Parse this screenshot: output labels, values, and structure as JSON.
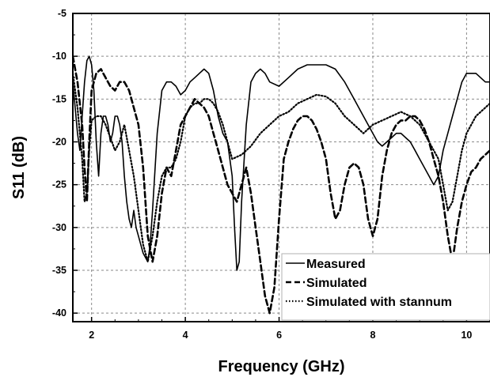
{
  "chart_data": {
    "type": "line",
    "xlabel": "Frequency (GHz)",
    "ylabel": "S11 (dB)",
    "xlim": [
      1.6,
      10.5
    ],
    "ylim": [
      -41,
      -5
    ],
    "x_ticks": [
      2,
      4,
      6,
      8,
      10
    ],
    "y_ticks": [
      -5,
      -10,
      -15,
      -20,
      -25,
      -30,
      -35,
      -40
    ],
    "grid": true,
    "legend_position": "bottom-right",
    "series": [
      {
        "name": "Measured",
        "style": "solid",
        "color": "#000000",
        "x": [
          1.6,
          1.7,
          1.75,
          1.8,
          1.85,
          1.9,
          1.95,
          2.0,
          2.05,
          2.1,
          2.15,
          2.2,
          2.25,
          2.3,
          2.35,
          2.4,
          2.45,
          2.5,
          2.55,
          2.6,
          2.65,
          2.7,
          2.75,
          2.8,
          2.85,
          2.9,
          2.95,
          3.0,
          3.1,
          3.2,
          3.25,
          3.3,
          3.4,
          3.5,
          3.6,
          3.7,
          3.8,
          3.9,
          4.0,
          4.1,
          4.2,
          4.3,
          4.4,
          4.5,
          4.6,
          4.7,
          4.8,
          4.9,
          5.0,
          5.05,
          5.1,
          5.15,
          5.2,
          5.3,
          5.4,
          5.5,
          5.6,
          5.7,
          5.8,
          6.0,
          6.2,
          6.4,
          6.6,
          6.8,
          7.0,
          7.2,
          7.4,
          7.6,
          7.8,
          8.0,
          8.1,
          8.2,
          8.3,
          8.4,
          8.5,
          8.6,
          8.7,
          8.8,
          8.9,
          9.0,
          9.1,
          9.2,
          9.3,
          9.4,
          9.5,
          9.6,
          9.7,
          9.8,
          9.9,
          10.0,
          10.1,
          10.2,
          10.3,
          10.4,
          10.5
        ],
        "y": [
          -13,
          -19,
          -21,
          -17,
          -13,
          -10.5,
          -10,
          -11,
          -14,
          -20,
          -24,
          -19,
          -17,
          -17,
          -18,
          -20,
          -19,
          -17,
          -17,
          -18,
          -20,
          -24,
          -27,
          -29,
          -30,
          -28,
          -30,
          -31,
          -33,
          -34,
          -32,
          -28,
          -19,
          -14,
          -13,
          -13,
          -13.5,
          -14.5,
          -14,
          -13,
          -12.5,
          -12,
          -11.5,
          -12,
          -14,
          -17,
          -19,
          -20,
          -24,
          -30,
          -35,
          -34,
          -27,
          -18,
          -13,
          -12,
          -11.5,
          -12,
          -13,
          -13.5,
          -12.5,
          -11.5,
          -11,
          -11,
          -11,
          -11.5,
          -13,
          -15,
          -17,
          -19,
          -20,
          -20.5,
          -20,
          -19.5,
          -19,
          -19,
          -19.5,
          -20,
          -21,
          -22,
          -23,
          -24,
          -25,
          -24,
          -21,
          -19,
          -17,
          -15,
          -13,
          -12,
          -12,
          -12,
          -12.5,
          -13,
          -13
        ]
      },
      {
        "name": "Simulated",
        "style": "dashed",
        "color": "#000000",
        "x": [
          1.6,
          1.7,
          1.8,
          1.85,
          1.9,
          1.95,
          2.0,
          2.1,
          2.2,
          2.3,
          2.4,
          2.5,
          2.6,
          2.7,
          2.8,
          2.9,
          3.0,
          3.1,
          3.2,
          3.3,
          3.4,
          3.5,
          3.6,
          3.7,
          3.8,
          3.9,
          4.0,
          4.1,
          4.2,
          4.3,
          4.4,
          4.5,
          4.6,
          4.7,
          4.8,
          4.9,
          5.0,
          5.1,
          5.2,
          5.3,
          5.4,
          5.5,
          5.6,
          5.7,
          5.8,
          5.9,
          6.0,
          6.1,
          6.2,
          6.3,
          6.4,
          6.5,
          6.6,
          6.7,
          6.8,
          6.9,
          7.0,
          7.1,
          7.2,
          7.3,
          7.4,
          7.5,
          7.6,
          7.7,
          7.8,
          7.9,
          8.0,
          8.1,
          8.2,
          8.3,
          8.4,
          8.5,
          8.6,
          8.7,
          8.8,
          8.9,
          9.0,
          9.1,
          9.2,
          9.3,
          9.4,
          9.5,
          9.6,
          9.7,
          9.8,
          9.9,
          10.0,
          10.1,
          10.2,
          10.3,
          10.4,
          10.5
        ],
        "y": [
          -10,
          -13,
          -18,
          -23,
          -27,
          -20,
          -14,
          -12,
          -11.5,
          -12.5,
          -13.5,
          -14,
          -13,
          -13,
          -14,
          -16,
          -18,
          -23,
          -31,
          -34,
          -31,
          -26,
          -23,
          -24,
          -21,
          -18,
          -17,
          -16,
          -15,
          -15.5,
          -16,
          -17,
          -19,
          -21,
          -23,
          -25,
          -26,
          -27,
          -25,
          -23,
          -26,
          -30,
          -34,
          -38,
          -40,
          -37,
          -29,
          -22,
          -20,
          -18.5,
          -17.5,
          -17,
          -17,
          -17.5,
          -18.5,
          -20,
          -22,
          -26,
          -29,
          -28,
          -25,
          -23,
          -22.5,
          -23,
          -25,
          -29,
          -31,
          -29,
          -24,
          -21,
          -19,
          -18,
          -17.5,
          -17.5,
          -17,
          -17,
          -17.5,
          -18.5,
          -20,
          -22,
          -24,
          -27,
          -31,
          -34,
          -30,
          -27,
          -25,
          -23.5,
          -23,
          -22,
          -21.5,
          -21
        ]
      },
      {
        "name": "Simulated with stannum",
        "style": "dotted",
        "color": "#000000",
        "x": [
          1.6,
          1.7,
          1.8,
          1.85,
          1.9,
          1.95,
          2.0,
          2.1,
          2.2,
          2.3,
          2.4,
          2.5,
          2.6,
          2.7,
          2.8,
          2.9,
          3.0,
          3.1,
          3.2,
          3.3,
          3.4,
          3.5,
          3.6,
          3.7,
          3.8,
          3.9,
          4.0,
          4.1,
          4.2,
          4.3,
          4.4,
          4.5,
          4.6,
          4.7,
          4.8,
          4.9,
          5.0,
          5.2,
          5.4,
          5.6,
          5.8,
          6.0,
          6.2,
          6.4,
          6.6,
          6.8,
          7.0,
          7.2,
          7.4,
          7.6,
          7.8,
          8.0,
          8.2,
          8.4,
          8.6,
          8.8,
          9.0,
          9.2,
          9.4,
          9.5,
          9.6,
          9.7,
          9.8,
          9.9,
          10.0,
          10.2,
          10.4,
          10.5
        ],
        "y": [
          -12,
          -16,
          -22,
          -27,
          -26,
          -21,
          -17.5,
          -17,
          -17,
          -18,
          -19.5,
          -21,
          -20,
          -18,
          -21,
          -24,
          -28,
          -32,
          -34,
          -31,
          -27,
          -24,
          -23,
          -23,
          -22,
          -20,
          -17,
          -16,
          -15.5,
          -15.5,
          -15,
          -15,
          -15.5,
          -16.5,
          -18,
          -20,
          -22,
          -21.5,
          -20.5,
          -19,
          -18,
          -17,
          -16.5,
          -15.5,
          -15,
          -14.5,
          -14.7,
          -15.5,
          -17,
          -18,
          -19,
          -18,
          -17.5,
          -17,
          -16.5,
          -17,
          -18,
          -20,
          -22,
          -25,
          -28,
          -27,
          -24,
          -21,
          -19,
          -17,
          -16,
          -15.5
        ]
      }
    ]
  }
}
